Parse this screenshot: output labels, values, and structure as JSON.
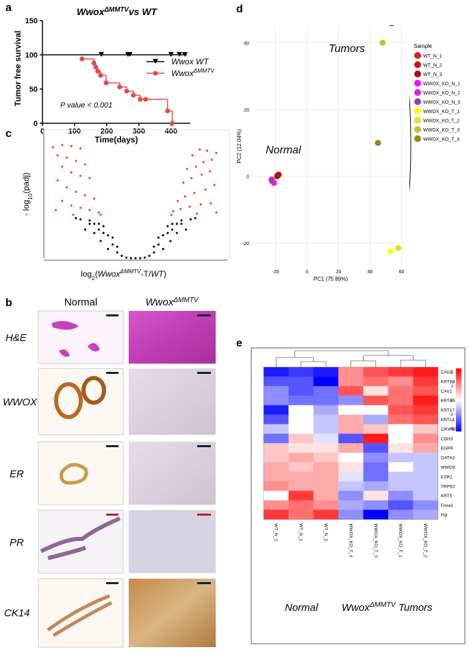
{
  "panel_labels": [
    "a",
    "b",
    "c",
    "d",
    "e"
  ],
  "histology": {
    "column_normal": "Normal",
    "column_mutant": [
      "Wwox",
      "ΔMMTV"
    ],
    "rows": [
      "H&E",
      "WWOX",
      "ER",
      "PR",
      "CK14"
    ]
  },
  "chart_data": [
    {
      "type": "step",
      "title_parts": [
        "Wwox",
        "ΔMMTV",
        "vs WT"
      ],
      "xlabel": "Time(days)",
      "ylabel": "Tumor free survival",
      "xlim": [
        0,
        460
      ],
      "xticks": [
        0,
        100,
        200,
        300,
        400
      ],
      "ylim": [
        0,
        150
      ],
      "yticks": [
        0,
        50,
        100,
        150
      ],
      "annotation": "P value < 0.001",
      "series": [
        {
          "name": "Wwox WT",
          "color": "#000000",
          "x": [
            0,
            450
          ],
          "values": [
            100,
            100
          ],
          "censored_x": [
            183,
            266,
            272,
            400,
            426,
            443
          ],
          "censored_values": [
            100,
            100,
            100,
            100,
            100,
            100
          ]
        },
        {
          "name": "Wwox",
          "name_sup": "ΔMMTV",
          "color": "#e8474a",
          "x": [
            123,
            160,
            166,
            172,
            181,
            198,
            240,
            262,
            283,
            304,
            321,
            389,
            404
          ],
          "values": [
            94,
            88,
            82,
            76,
            70,
            59,
            53,
            47,
            41,
            35,
            35,
            18,
            0
          ]
        }
      ]
    },
    {
      "type": "scatter",
      "xlabel_parts": [
        "log",
        "2",
        "(",
        "Wwox",
        "ΔMMTV",
        "-T/",
        "WT",
        ")"
      ],
      "ylabel_parts": [
        "- log",
        "10",
        "(padj)"
      ],
      "xlim": [
        -10,
        10
      ],
      "ylim": [
        0,
        100
      ],
      "series": [
        {
          "color": "#ee4444",
          "x": [
            -9,
            -8,
            -7,
            -6,
            -8.5,
            -7.5,
            -6.5,
            -5.5,
            -8,
            -7,
            -6,
            -5,
            -8.5,
            -7.5,
            -6.5,
            -5.5,
            -4.5,
            -8,
            -7,
            -6,
            -5,
            -4,
            -8.7,
            -3.8,
            -6.8,
            8.8,
            7.8,
            7,
            6.2,
            8.3,
            7.4,
            6.6,
            5.6,
            8.1,
            7.2,
            6.1,
            5.2,
            8.6,
            7.6,
            6.4,
            5.4,
            4.6,
            8.2,
            7.1,
            5.9,
            4.9,
            4.1,
            8.8,
            3.9,
            6.7
          ],
          "values": [
            97,
            99,
            98,
            96,
            90,
            88,
            85,
            82,
            80,
            75,
            72,
            70,
            68,
            62,
            58,
            55,
            52,
            50,
            46,
            44,
            42,
            40,
            42,
            38,
            38,
            92,
            94,
            95,
            90,
            86,
            84,
            80,
            78,
            76,
            73,
            70,
            66,
            64,
            60,
            57,
            54,
            50,
            48,
            47,
            45,
            43,
            41,
            40,
            38,
            39
          ]
        },
        {
          "color": "#111111",
          "x": [
            -6.5,
            -6,
            -5,
            -5,
            -4.5,
            -4.5,
            -4,
            -4,
            -3.8,
            -3.5,
            -3.5,
            -3,
            -3,
            -2.5,
            -2.5,
            -2,
            -2,
            -1.5,
            -1,
            -5.5,
            6.5,
            6,
            5,
            5,
            4.5,
            4.5,
            4,
            4,
            3.8,
            3.5,
            3.5,
            3,
            3,
            2.5,
            2.5,
            2,
            2,
            1.5,
            1,
            5.5,
            -0.5,
            0,
            0.5
          ],
          "values": [
            35,
            34,
            33,
            30,
            30,
            22,
            30,
            25,
            15,
            28,
            22,
            20,
            8,
            18,
            12,
            10,
            5,
            2,
            0.5,
            25,
            35,
            34,
            33,
            30,
            30,
            22,
            30,
            25,
            15,
            28,
            22,
            20,
            8,
            18,
            12,
            10,
            5,
            2,
            0.5,
            25,
            0,
            0,
            0
          ]
        }
      ]
    },
    {
      "type": "scatter",
      "xlabel": "PC1 (75.89%)",
      "ylabel": "PC2 (12.04%)",
      "xlim": [
        -35,
        65
      ],
      "xticks": [
        -20,
        0,
        20,
        40,
        60
      ],
      "ylim": [
        -27,
        45
      ],
      "yticks": [
        -20,
        0,
        20,
        40
      ],
      "grid": true,
      "legend": "right",
      "legend_title": "Sample",
      "annotations": [
        "Tumors",
        "Normal"
      ],
      "series": [
        {
          "name": "WT_N_1",
          "color": "#e41a1c",
          "x": [
            -18
          ],
          "values": [
            0.5
          ]
        },
        {
          "name": "WT_N_2",
          "color": "#cc1111",
          "x": [
            -19
          ],
          "values": [
            0
          ]
        },
        {
          "name": "WT_N_3",
          "color": "#a50f15",
          "x": [
            -18.5
          ],
          "values": [
            0.3
          ]
        },
        {
          "name": "WWOX_KO_N_1",
          "color": "#ff00ff",
          "x": [
            -22
          ],
          "values": [
            -1.5
          ]
        },
        {
          "name": "WWOX_KO_N_2",
          "color": "#d62ad6",
          "x": [
            -21
          ],
          "values": [
            -2
          ]
        },
        {
          "name": "WWOX_KO_N_3",
          "color": "#a23ca8",
          "x": [
            -22.5
          ],
          "values": [
            -1
          ]
        },
        {
          "name": "WWOX_KO_T_1",
          "color": "#ffff00",
          "x": [
            53
          ],
          "values": [
            -22.5
          ]
        },
        {
          "name": "WWOX_KO_T_2",
          "color": "#e2e232",
          "x": [
            57.8
          ],
          "values": [
            -21.5
          ]
        },
        {
          "name": "WWOX_KO_T_3",
          "color": "#c2c22e",
          "x": [
            48
          ],
          "values": [
            40
          ]
        },
        {
          "name": "WWOX_KO_T_4",
          "color": "#8f8f22",
          "x": [
            45
          ],
          "values": [
            10
          ]
        }
      ]
    },
    {
      "type": "heatmap",
      "columns": [
        "WT_N_3",
        "WT_N_1",
        "WT_N_2",
        "WWOX_KO_T_4",
        "WWOX_KO_T_3",
        "WWOX_KO_T_1",
        "WWOX_KO_T_2"
      ],
      "rows": [
        "CAV2",
        "KRT6B",
        "CAV1",
        "KRT6A",
        "KRT17",
        "KRT14",
        "CRYAB",
        "CDH3",
        "EGFR",
        "GATA3",
        "WWOX",
        "ESR1",
        "TRP53",
        "KRT5",
        "Foxa1",
        "Pgr"
      ],
      "z": [
        [
          -4,
          -3.5,
          -4,
          2,
          3,
          3.5,
          4
        ],
        [
          -3,
          -3,
          -4.5,
          2,
          2.5,
          2,
          3.5
        ],
        [
          -2,
          -3,
          -2.5,
          3,
          0.5,
          2.5,
          3
        ],
        [
          -2,
          -2.5,
          -2.5,
          -2,
          3,
          2.5,
          4
        ],
        [
          -4,
          0,
          -1.5,
          0,
          0,
          3,
          3.5
        ],
        [
          -3,
          0,
          -1,
          1.5,
          -1.5,
          2.5,
          3
        ],
        [
          -1,
          0,
          -1,
          1.5,
          1,
          0,
          1
        ],
        [
          -2.5,
          1,
          -0.5,
          -3,
          4,
          0,
          2
        ],
        [
          1,
          0.5,
          0.5,
          1.5,
          -3,
          0.5,
          1.5
        ],
        [
          1,
          1.5,
          1,
          0,
          -2,
          -1,
          -1
        ],
        [
          1.5,
          1,
          1.5,
          0.5,
          -2.5,
          0,
          -1
        ],
        [
          1.5,
          1.5,
          1.5,
          -0.5,
          -2.5,
          -1,
          -1
        ],
        [
          2,
          1.5,
          1.5,
          -1,
          -1.5,
          -1,
          -1
        ],
        [
          0,
          3.5,
          1.5,
          -2,
          0.5,
          -2,
          -1
        ],
        [
          2,
          2.5,
          2,
          -1.5,
          -2,
          -3,
          -2
        ],
        [
          3.5,
          2.5,
          3.5,
          -2,
          -4.5,
          -2,
          -1.5
        ]
      ],
      "zlim": [
        -4.5,
        4.5
      ],
      "low_color": "#0000ff",
      "high_color": "#ff0000",
      "colorbar_ticks": [
        4,
        2,
        0,
        {
          "value": -2,
          "label": "−2"
        },
        {
          "value": -4,
          "label": "−4"
        }
      ],
      "group_labels": [
        [
          "Normal"
        ],
        [
          "Wwox",
          "ΔMMTV",
          "Tumors"
        ]
      ]
    }
  ]
}
